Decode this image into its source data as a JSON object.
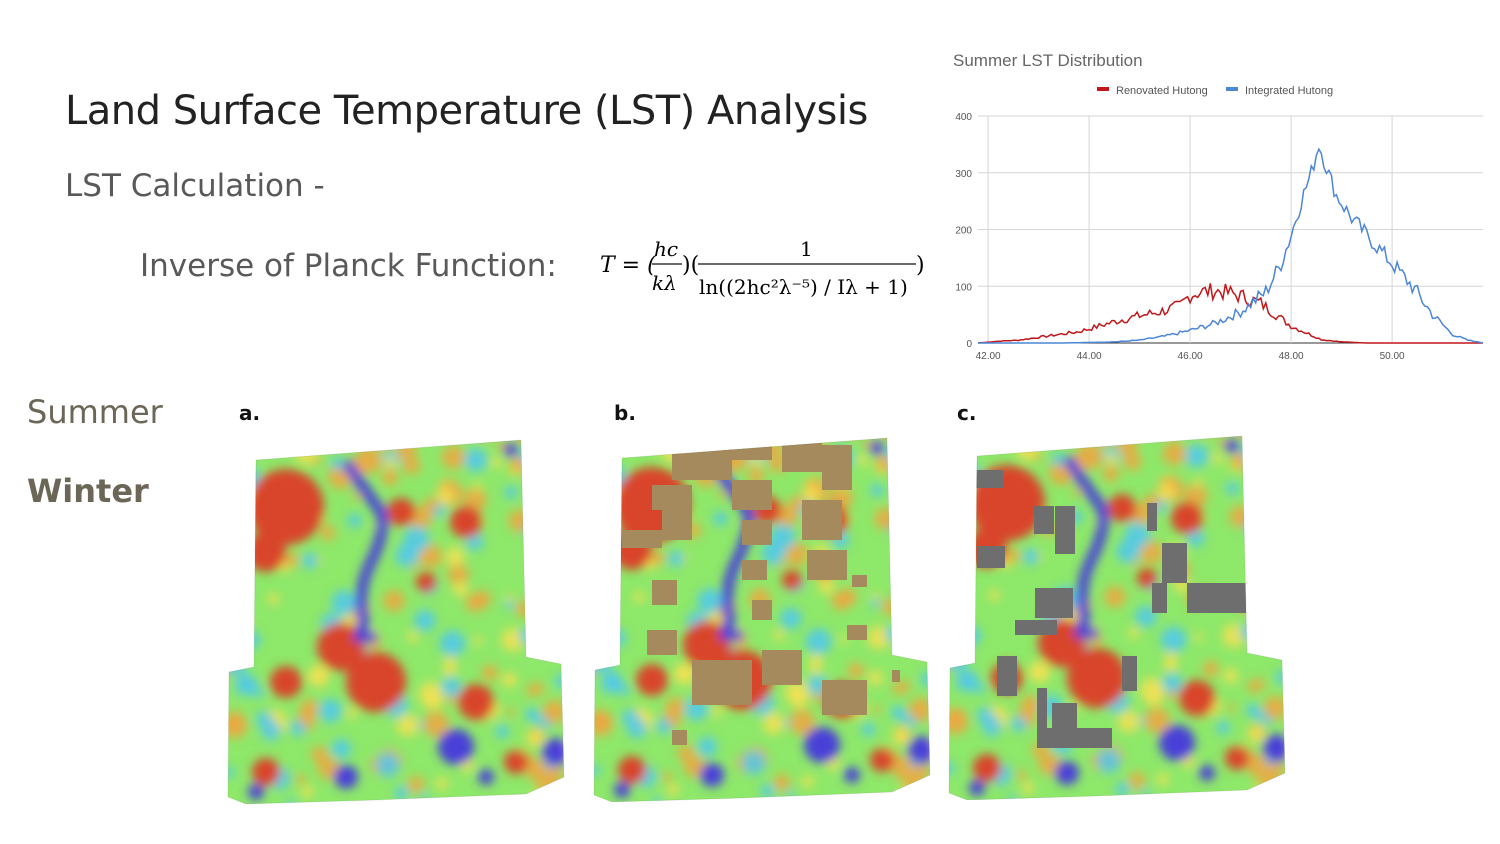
{
  "slide": {
    "title": "Land Surface Temperature (LST) Analysis",
    "subtitle": "LST Calculation -",
    "formula_label": "Inverse of Planck Function:",
    "formula": {
      "lhs": "T = (",
      "num1": "hc",
      "den1": "kλ",
      "mid": ")(",
      "num2": "1",
      "den2": "ln((2hc²λ⁻⁵) / Iλ + 1)",
      "end": ")"
    },
    "season_labels": {
      "summer": "Summer",
      "winter": "Winter"
    },
    "panels": [
      {
        "letter": "a.",
        "overlay": "none"
      },
      {
        "letter": "b.",
        "overlay": "renovated-blocks"
      },
      {
        "letter": "c.",
        "overlay": "integrated-blocks"
      }
    ],
    "colors": {
      "map_base": "#8ee86a",
      "map_hot": "#d9452a",
      "map_warm": "#f0a640",
      "map_cool": "#50c8f0",
      "map_water": "#4a3fd8",
      "overlay_renovated": "#a48a5c",
      "overlay_integrated": "#6e6e6e"
    }
  },
  "chart_data": {
    "type": "line",
    "title": "Summer LST Distribution",
    "xlabel": "",
    "ylabel": "",
    "xlim": [
      41.8,
      51.8
    ],
    "ylim": [
      0,
      400
    ],
    "x_ticks": [
      "42.00",
      "44.00",
      "46.00",
      "48.00",
      "50.00"
    ],
    "x_tick_values": [
      42,
      44,
      46,
      48,
      50
    ],
    "y_ticks": [
      "0",
      "100",
      "200",
      "300",
      "400"
    ],
    "y_tick_values": [
      0,
      100,
      200,
      300,
      400
    ],
    "grid": true,
    "legend_position": "top",
    "series": [
      {
        "name": "Renovated Hutong",
        "color": "#c0171b",
        "points": [
          [
            41.8,
            0
          ],
          [
            42.2,
            3
          ],
          [
            42.6,
            5
          ],
          [
            43.0,
            10
          ],
          [
            43.4,
            15
          ],
          [
            43.8,
            20
          ],
          [
            44.2,
            30
          ],
          [
            44.6,
            40
          ],
          [
            45.0,
            48
          ],
          [
            45.4,
            55
          ],
          [
            45.8,
            65
          ],
          [
            46.0,
            85
          ],
          [
            46.2,
            90
          ],
          [
            46.5,
            92
          ],
          [
            46.8,
            88
          ],
          [
            47.1,
            80
          ],
          [
            47.4,
            70
          ],
          [
            47.7,
            50
          ],
          [
            48.0,
            30
          ],
          [
            48.3,
            18
          ],
          [
            48.6,
            6
          ],
          [
            49.0,
            2
          ],
          [
            49.5,
            0
          ],
          [
            51.8,
            0
          ]
        ]
      },
      {
        "name": "Integrated Hutong",
        "color": "#4c86d6",
        "points": [
          [
            41.8,
            0
          ],
          [
            43.5,
            0
          ],
          [
            44.5,
            2
          ],
          [
            45.0,
            5
          ],
          [
            45.5,
            12
          ],
          [
            46.0,
            22
          ],
          [
            46.5,
            35
          ],
          [
            47.0,
            55
          ],
          [
            47.5,
            90
          ],
          [
            47.8,
            140
          ],
          [
            48.0,
            190
          ],
          [
            48.2,
            250
          ],
          [
            48.4,
            300
          ],
          [
            48.55,
            350
          ],
          [
            48.7,
            310
          ],
          [
            48.9,
            260
          ],
          [
            49.2,
            220
          ],
          [
            49.6,
            180
          ],
          [
            50.0,
            140
          ],
          [
            50.4,
            100
          ],
          [
            50.8,
            50
          ],
          [
            51.2,
            15
          ],
          [
            51.5,
            5
          ],
          [
            51.8,
            0
          ]
        ]
      }
    ]
  }
}
